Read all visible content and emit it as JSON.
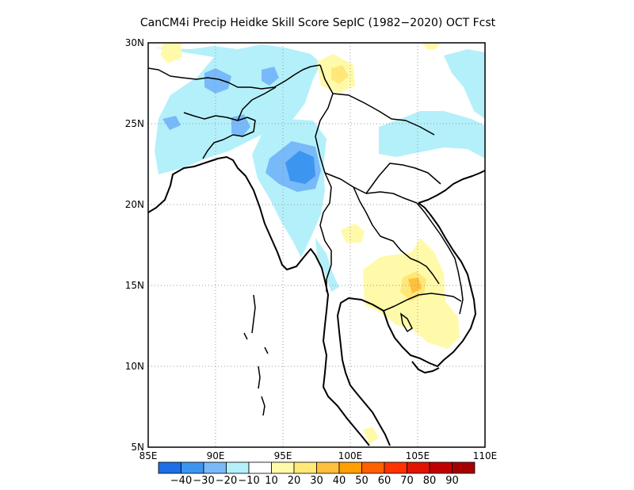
{
  "title": "CanCM4i Precip Heidke Skill Score SepIC (1982−2020) OCT Fcst",
  "map": {
    "lon_range": [
      85,
      110
    ],
    "lat_range": [
      5,
      30
    ],
    "x_ticks": [
      "85E",
      "90E",
      "95E",
      "100E",
      "105E",
      "110E"
    ],
    "y_ticks": [
      "5N",
      "10N",
      "15N",
      "20N",
      "25N",
      "30N"
    ],
    "gridlines": "dotted"
  },
  "colorbar": {
    "colors": [
      "#1e6ee6",
      "#3c96f0",
      "#78b9fa",
      "#b4f0fa",
      "#ffffff",
      "#fffaaa",
      "#ffe878",
      "#ffc03c",
      "#ffa000",
      "#ff6000",
      "#ff3200",
      "#e11400",
      "#c00000",
      "#a50000"
    ],
    "labels": [
      "−40",
      "−30",
      "−20",
      "−10",
      "10",
      "20",
      "30",
      "40",
      "50",
      "60",
      "70",
      "80",
      "90"
    ]
  }
}
